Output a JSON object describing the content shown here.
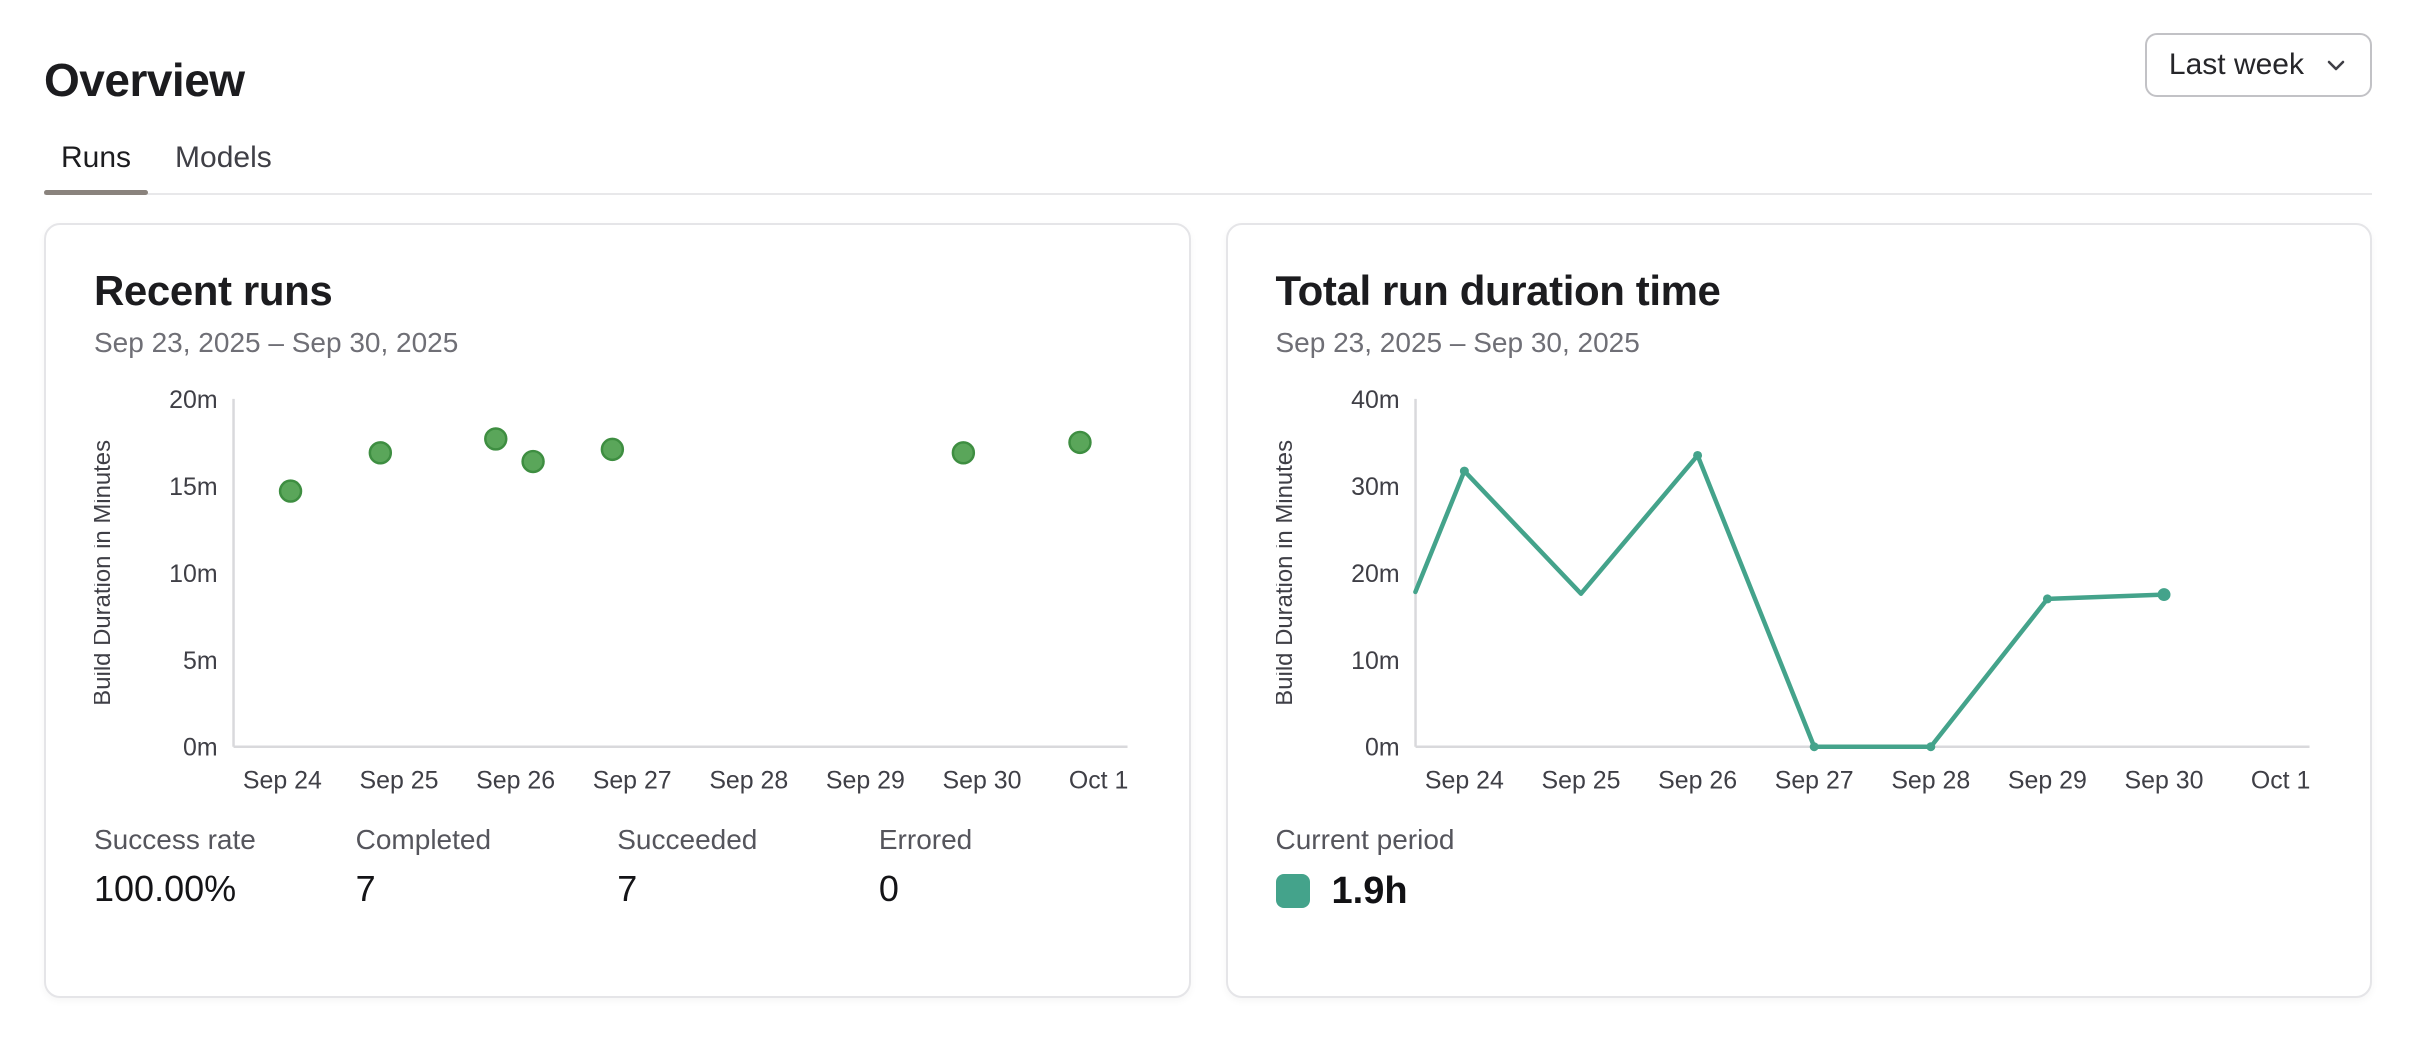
{
  "header": {
    "title": "Overview",
    "date_range_selected": "Last week",
    "date_range_icon": "chevron-down-icon"
  },
  "tabs": [
    {
      "label": "Runs",
      "active": true
    },
    {
      "label": "Models",
      "active": false
    }
  ],
  "cards": {
    "recent_runs": {
      "title": "Recent runs",
      "subtitle": "Sep 23, 2025 – Sep 30, 2025",
      "stats": [
        {
          "label": "Success rate",
          "value": "100.00%"
        },
        {
          "label": "Completed",
          "value": "7"
        },
        {
          "label": "Succeeded",
          "value": "7"
        },
        {
          "label": "Errored",
          "value": "0"
        }
      ]
    },
    "total_duration": {
      "title": "Total run duration time",
      "subtitle": "Sep 23, 2025 – Sep 30, 2025",
      "legend_label": "Current period",
      "legend_value": "1.9h"
    }
  },
  "colors": {
    "scatter_dot_fill": "#5aa65a",
    "scatter_dot_stroke": "#3e8e41",
    "line": "#44a38b",
    "legend_swatch": "#44a38b",
    "axis_line": "#d9d9dc",
    "tick_text": "#3f3f46"
  },
  "chart_data": [
    {
      "type": "scatter",
      "title": "Recent runs",
      "ylabel": "Build Duration in Minutes",
      "ylim": [
        0,
        20
      ],
      "y_ticks": [
        "0m",
        "5m",
        "10m",
        "15m",
        "20m"
      ],
      "x_tick_labels": [
        "Sep 24",
        "Sep 25",
        "Sep 26",
        "Sep 27",
        "Sep 28",
        "Sep 29",
        "Sep 30",
        "Oct 1"
      ],
      "grid": false,
      "points": [
        {
          "x_days": 0.07,
          "minutes": 14.7
        },
        {
          "x_days": 0.84,
          "minutes": 16.9
        },
        {
          "x_days": 1.83,
          "minutes": 17.7
        },
        {
          "x_days": 2.15,
          "minutes": 16.4
        },
        {
          "x_days": 2.83,
          "minutes": 17.1
        },
        {
          "x_days": 5.84,
          "minutes": 16.9
        },
        {
          "x_days": 6.84,
          "minutes": 17.5
        }
      ]
    },
    {
      "type": "line",
      "title": "Total run duration time",
      "ylabel": "Build Duration in Minutes",
      "ylim": [
        0,
        40
      ],
      "y_ticks": [
        "0m",
        "10m",
        "20m",
        "30m",
        "40m"
      ],
      "x_tick_labels": [
        "Sep 24",
        "Sep 25",
        "Sep 26",
        "Sep 27",
        "Sep 28",
        "Sep 29",
        "Sep 30",
        "Oct 1"
      ],
      "grid": false,
      "legend_position": "bottom-left",
      "series": [
        {
          "name": "Current period",
          "points": [
            {
              "x_days": -0.42,
              "minutes": 17.8,
              "marker": false
            },
            {
              "x_days": 0,
              "minutes": 31.7,
              "marker": true
            },
            {
              "x_days": 1,
              "minutes": 17.6,
              "marker": false
            },
            {
              "x_days": 2,
              "minutes": 33.5,
              "marker": true
            },
            {
              "x_days": 3,
              "minutes": 0,
              "marker": true
            },
            {
              "x_days": 4,
              "minutes": 0,
              "marker": true
            },
            {
              "x_days": 5,
              "minutes": 17.0,
              "marker": true
            },
            {
              "x_days": 6,
              "minutes": 17.5,
              "marker": true,
              "end": true
            }
          ]
        }
      ]
    }
  ]
}
